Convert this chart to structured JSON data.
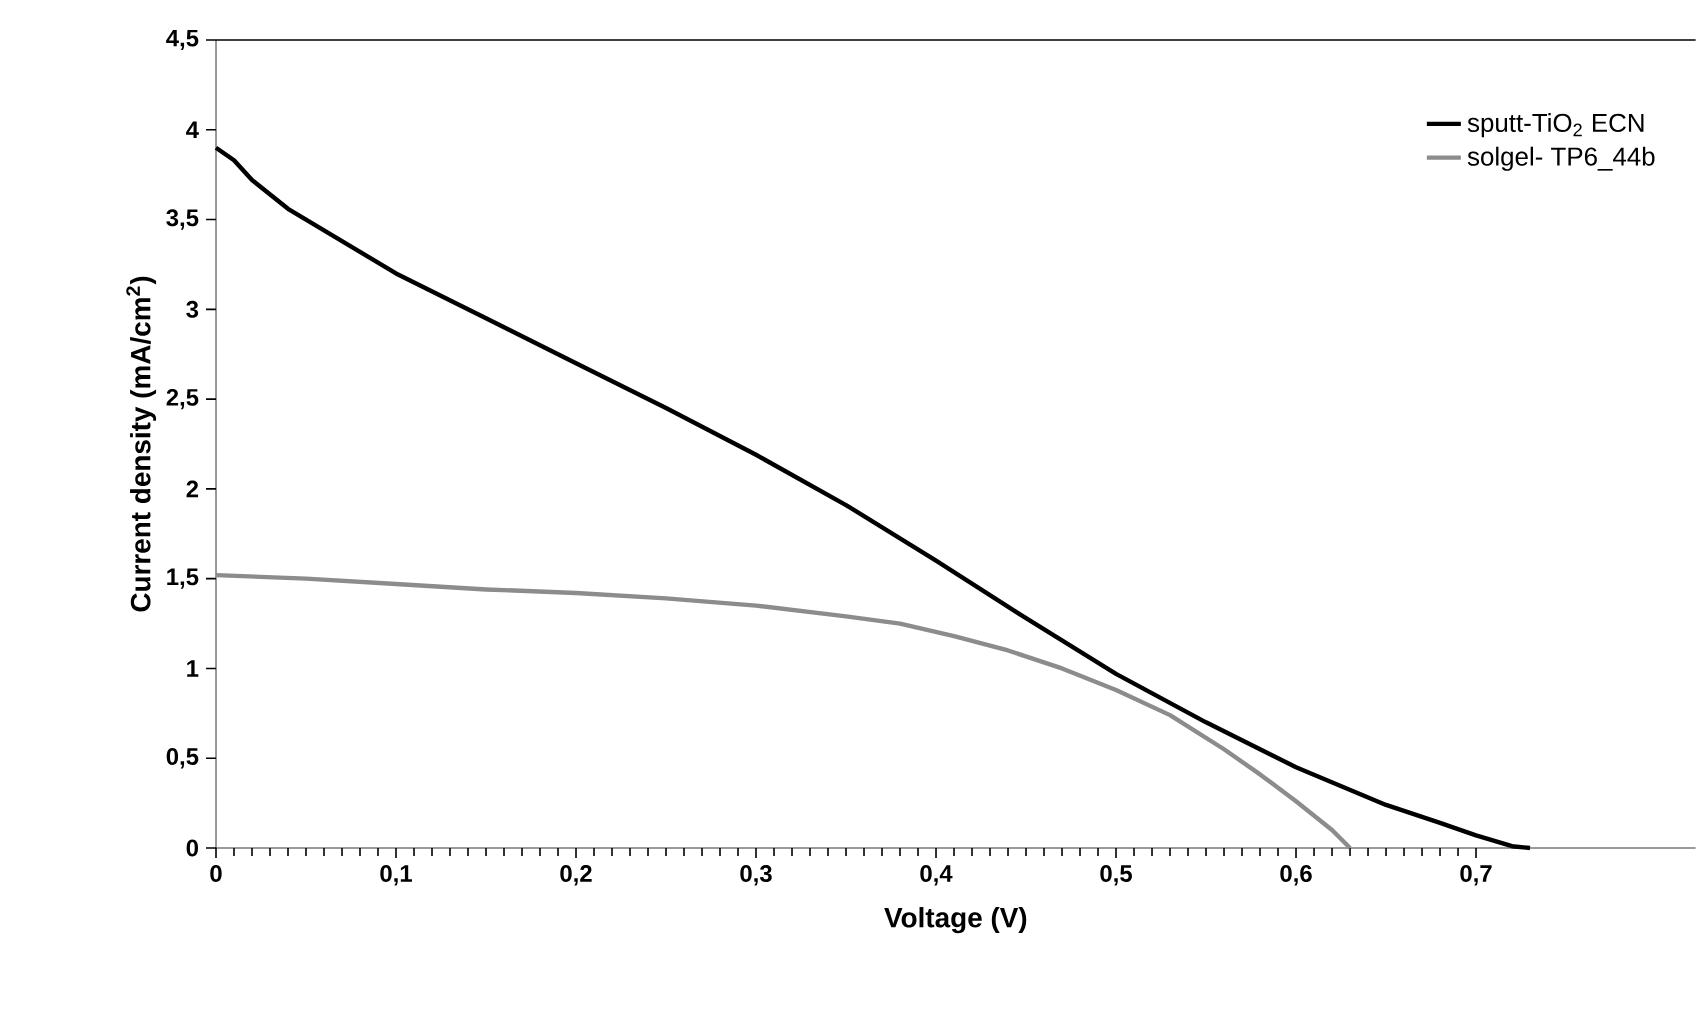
{
  "chart_data": {
    "type": "line",
    "xlabel": "Voltage (V)",
    "ylabel": "Current density (mA/cm$^{2}$)",
    "xlim": [
      0,
      0.822
    ],
    "ylim": [
      0,
      4.5
    ],
    "xticks": [
      0,
      {
        "value": 0.1,
        "label": "0,1"
      },
      {
        "value": 0.2,
        "label": "0,2"
      },
      {
        "value": 0.3,
        "label": "0,3"
      },
      {
        "value": 0.4,
        "label": "0,4"
      },
      {
        "value": 0.5,
        "label": "0,5"
      },
      {
        "value": 0.6,
        "label": "0,6"
      },
      {
        "value": 0.7,
        "label": "0,7"
      }
    ],
    "yticks": [
      0,
      {
        "value": 0.5,
        "label": "0,5"
      },
      1,
      {
        "value": 1.5,
        "label": "1,5"
      },
      2,
      {
        "value": 2.5,
        "label": "2,5"
      },
      3,
      {
        "value": 3.5,
        "label": "3,5"
      },
      4,
      {
        "value": 4.5,
        "label": "4,5"
      }
    ],
    "legend": "top right",
    "grid": false,
    "marker": "none",
    "line_style": "solid",
    "series": [
      {
        "name": "sputt-TiO$_{2}$ ECN",
        "color": "#000000",
        "x": [
          0,
          0.01,
          0.02,
          0.04,
          0.06,
          0.1,
          0.15,
          0.2,
          0.25,
          0.3,
          0.35,
          0.4,
          0.45,
          0.5,
          0.55,
          0.6,
          0.65,
          0.68,
          0.7,
          0.72,
          0.73
        ],
        "values": [
          3.9,
          3.83,
          3.72,
          3.56,
          3.44,
          3.2,
          2.95,
          2.7,
          2.45,
          2.19,
          1.91,
          1.6,
          1.28,
          0.97,
          0.7,
          0.45,
          0.24,
          0.14,
          0.07,
          0.01,
          0
        ]
      },
      {
        "name": "solgel- TP6_44b",
        "color": "#8c8c8c",
        "x": [
          0,
          0.05,
          0.1,
          0.15,
          0.2,
          0.25,
          0.3,
          0.35,
          0.38,
          0.41,
          0.44,
          0.47,
          0.5,
          0.53,
          0.56,
          0.58,
          0.6,
          0.62,
          0.63
        ],
        "values": [
          1.52,
          1.5,
          1.47,
          1.44,
          1.42,
          1.39,
          1.35,
          1.29,
          1.25,
          1.18,
          1.1,
          1.0,
          0.88,
          0.74,
          0.55,
          0.41,
          0.26,
          0.1,
          0
        ]
      }
    ]
  }
}
